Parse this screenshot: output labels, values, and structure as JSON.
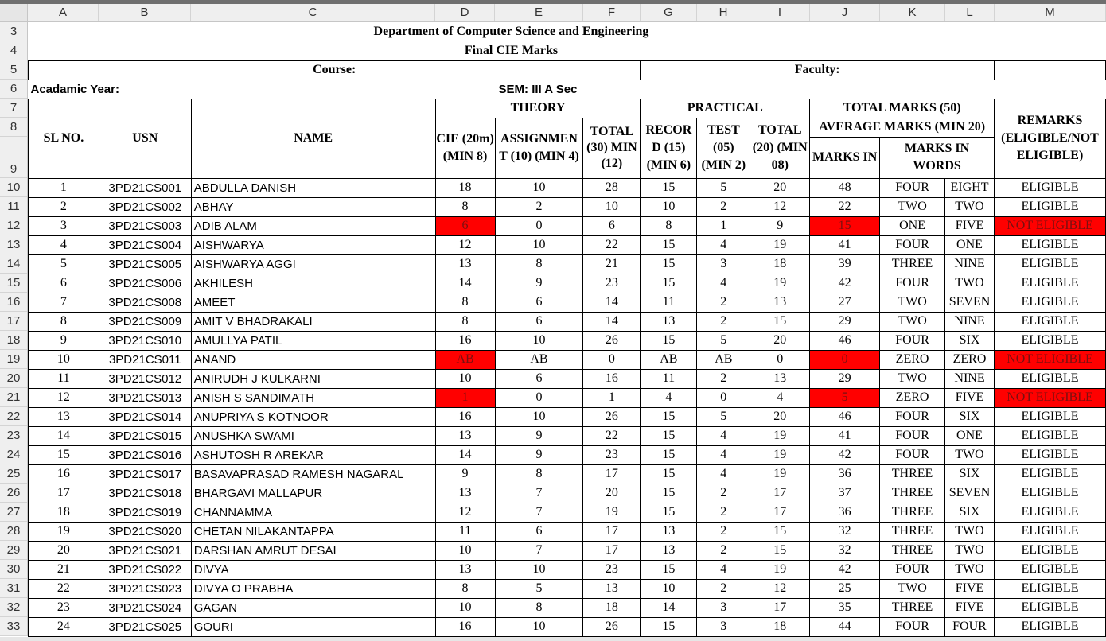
{
  "column_letters": [
    "A",
    "B",
    "C",
    "D",
    "E",
    "F",
    "G",
    "H",
    "I",
    "J",
    "K",
    "L",
    "M"
  ],
  "row_numbers": [
    "3",
    "4",
    "5",
    "6",
    "7",
    "8",
    "9",
    "10",
    "11",
    "12",
    "13",
    "14",
    "15",
    "16",
    "17",
    "18",
    "19",
    "20",
    "21",
    "22",
    "23",
    "24",
    "25",
    "26",
    "27",
    "28",
    "29",
    "30",
    "31",
    "32",
    "33"
  ],
  "header": {
    "dept": "Department of Computer Science and Engineering",
    "final": "Final CIE Marks",
    "course": "Course:",
    "faculty": "Faculty:",
    "academic_year": "Acadamic Year:",
    "sem": "SEM: III  A Sec"
  },
  "columns": {
    "sl_no": "SL NO.",
    "usn": "USN",
    "name": "NAME",
    "theory": "THEORY",
    "practical": "PRACTICAL",
    "total_marks": "TOTAL MARKS (50)",
    "average_marks": "AVERAGE MARKS (MIN 20)",
    "remarks": "REMARKS (ELIGIBLE/NOT ELIGIBLE)",
    "cie": "CIE (20m) (MIN 8)",
    "assignment": "ASSIGNMEN T (10) (MIN 4)",
    "theory_total": "TOTAL (30) MIN (12)",
    "record": "RECOR D (15) (MIN 6)",
    "test": "TEST (05) (MIN 2)",
    "practical_total": "TOTAL (20) (MIN 08)",
    "marks_in": "MARKS IN",
    "marks_in_words": "MARKS IN WORDS"
  },
  "students": [
    {
      "sl": "1",
      "usn": "3PD21CS001",
      "name": "ABDULLA DANISH",
      "cie": "18",
      "asg": "10",
      "ttot": "28",
      "rec": "15",
      "test": "5",
      "ptot": "20",
      "marks": "48",
      "w1": "FOUR",
      "w2": "EIGHT",
      "remark": "ELIGIBLE"
    },
    {
      "sl": "2",
      "usn": "3PD21CS002",
      "name": "ABHAY",
      "cie": "8",
      "asg": "2",
      "ttot": "10",
      "rec": "10",
      "test": "2",
      "ptot": "12",
      "marks": "22",
      "w1": "TWO",
      "w2": "TWO",
      "remark": "ELIGIBLE"
    },
    {
      "sl": "3",
      "usn": "3PD21CS003",
      "name": "ADIB ALAM",
      "cie": "6",
      "asg": "0",
      "ttot": "6",
      "rec": "8",
      "test": "1",
      "ptot": "9",
      "marks": "15",
      "w1": "ONE",
      "w2": "FIVE",
      "remark": "NOT ELIGIBLE",
      "flag": true
    },
    {
      "sl": "4",
      "usn": "3PD21CS004",
      "name": "AISHWARYA",
      "cie": "12",
      "asg": "10",
      "ttot": "22",
      "rec": "15",
      "test": "4",
      "ptot": "19",
      "marks": "41",
      "w1": "FOUR",
      "w2": "ONE",
      "remark": "ELIGIBLE"
    },
    {
      "sl": "5",
      "usn": "3PD21CS005",
      "name": "AISHWARYA AGGI",
      "cie": "13",
      "asg": "8",
      "ttot": "21",
      "rec": "15",
      "test": "3",
      "ptot": "18",
      "marks": "39",
      "w1": "THREE",
      "w2": "NINE",
      "remark": "ELIGIBLE"
    },
    {
      "sl": "6",
      "usn": "3PD21CS006",
      "name": "AKHILESH",
      "cie": "14",
      "asg": "9",
      "ttot": "23",
      "rec": "15",
      "test": "4",
      "ptot": "19",
      "marks": "42",
      "w1": "FOUR",
      "w2": "TWO",
      "remark": "ELIGIBLE"
    },
    {
      "sl": "7",
      "usn": "3PD21CS008",
      "name": "AMEET",
      "cie": "8",
      "asg": "6",
      "ttot": "14",
      "rec": "11",
      "test": "2",
      "ptot": "13",
      "marks": "27",
      "w1": "TWO",
      "w2": "SEVEN",
      "remark": "ELIGIBLE"
    },
    {
      "sl": "8",
      "usn": "3PD21CS009",
      "name": "AMIT V BHADRAKALI",
      "cie": "8",
      "asg": "6",
      "ttot": "14",
      "rec": "13",
      "test": "2",
      "ptot": "15",
      "marks": "29",
      "w1": "TWO",
      "w2": "NINE",
      "remark": "ELIGIBLE"
    },
    {
      "sl": "9",
      "usn": "3PD21CS010",
      "name": "AMULLYA PATIL",
      "cie": "16",
      "asg": "10",
      "ttot": "26",
      "rec": "15",
      "test": "5",
      "ptot": "20",
      "marks": "46",
      "w1": "FOUR",
      "w2": "SIX",
      "remark": "ELIGIBLE"
    },
    {
      "sl": "10",
      "usn": "3PD21CS011",
      "name": "ANAND",
      "cie": "AB",
      "asg": "AB",
      "ttot": "0",
      "rec": "AB",
      "test": "AB",
      "ptot": "0",
      "marks": "0",
      "w1": "ZERO",
      "w2": "ZERO",
      "remark": "NOT ELIGIBLE",
      "flag": true
    },
    {
      "sl": "11",
      "usn": "3PD21CS012",
      "name": "ANIRUDH J KULKARNI",
      "cie": "10",
      "asg": "6",
      "ttot": "16",
      "rec": "11",
      "test": "2",
      "ptot": "13",
      "marks": "29",
      "w1": "TWO",
      "w2": "NINE",
      "remark": "ELIGIBLE"
    },
    {
      "sl": "12",
      "usn": "3PD21CS013",
      "name": "ANISH S SANDIMATH",
      "cie": "1",
      "asg": "0",
      "ttot": "1",
      "rec": "4",
      "test": "0",
      "ptot": "4",
      "marks": "5",
      "w1": "ZERO",
      "w2": "FIVE",
      "remark": "NOT ELIGIBLE",
      "flag": true
    },
    {
      "sl": "13",
      "usn": "3PD21CS014",
      "name": "ANUPRIYA S KOTNOOR",
      "cie": "16",
      "asg": "10",
      "ttot": "26",
      "rec": "15",
      "test": "5",
      "ptot": "20",
      "marks": "46",
      "w1": "FOUR",
      "w2": "SIX",
      "remark": "ELIGIBLE"
    },
    {
      "sl": "14",
      "usn": "3PD21CS015",
      "name": "ANUSHKA SWAMI",
      "cie": "13",
      "asg": "9",
      "ttot": "22",
      "rec": "15",
      "test": "4",
      "ptot": "19",
      "marks": "41",
      "w1": "FOUR",
      "w2": "ONE",
      "remark": "ELIGIBLE"
    },
    {
      "sl": "15",
      "usn": "3PD21CS016",
      "name": "ASHUTOSH R AREKAR",
      "cie": "14",
      "asg": "9",
      "ttot": "23",
      "rec": "15",
      "test": "4",
      "ptot": "19",
      "marks": "42",
      "w1": "FOUR",
      "w2": "TWO",
      "remark": "ELIGIBLE"
    },
    {
      "sl": "16",
      "usn": "3PD21CS017",
      "name": "BASAVAPRASAD RAMESH NAGARAL",
      "cie": "9",
      "asg": "8",
      "ttot": "17",
      "rec": "15",
      "test": "4",
      "ptot": "19",
      "marks": "36",
      "w1": "THREE",
      "w2": "SIX",
      "remark": "ELIGIBLE"
    },
    {
      "sl": "17",
      "usn": "3PD21CS018",
      "name": "BHARGAVI MALLAPUR",
      "cie": "13",
      "asg": "7",
      "ttot": "20",
      "rec": "15",
      "test": "2",
      "ptot": "17",
      "marks": "37",
      "w1": "THREE",
      "w2": "SEVEN",
      "remark": "ELIGIBLE"
    },
    {
      "sl": "18",
      "usn": "3PD21CS019",
      "name": "CHANNAMMA",
      "cie": "12",
      "asg": "7",
      "ttot": "19",
      "rec": "15",
      "test": "2",
      "ptot": "17",
      "marks": "36",
      "w1": "THREE",
      "w2": "SIX",
      "remark": "ELIGIBLE"
    },
    {
      "sl": "19",
      "usn": "3PD21CS020",
      "name": "CHETAN NILAKANTAPPA",
      "cie": "11",
      "asg": "6",
      "ttot": "17",
      "rec": "13",
      "test": "2",
      "ptot": "15",
      "marks": "32",
      "w1": "THREE",
      "w2": "TWO",
      "remark": "ELIGIBLE"
    },
    {
      "sl": "20",
      "usn": "3PD21CS021",
      "name": "DARSHAN AMRUT DESAI",
      "cie": "10",
      "asg": "7",
      "ttot": "17",
      "rec": "13",
      "test": "2",
      "ptot": "15",
      "marks": "32",
      "w1": "THREE",
      "w2": "TWO",
      "remark": "ELIGIBLE"
    },
    {
      "sl": "21",
      "usn": "3PD21CS022",
      "name": "DIVYA",
      "cie": "13",
      "asg": "10",
      "ttot": "23",
      "rec": "15",
      "test": "4",
      "ptot": "19",
      "marks": "42",
      "w1": "FOUR",
      "w2": "TWO",
      "remark": "ELIGIBLE"
    },
    {
      "sl": "22",
      "usn": "3PD21CS023",
      "name": "DIVYA O PRABHA",
      "cie": "8",
      "asg": "5",
      "ttot": "13",
      "rec": "10",
      "test": "2",
      "ptot": "12",
      "marks": "25",
      "w1": "TWO",
      "w2": "FIVE",
      "remark": "ELIGIBLE"
    },
    {
      "sl": "23",
      "usn": "3PD21CS024",
      "name": "GAGAN",
      "cie": "10",
      "asg": "8",
      "ttot": "18",
      "rec": "14",
      "test": "3",
      "ptot": "17",
      "marks": "35",
      "w1": "THREE",
      "w2": "FIVE",
      "remark": "ELIGIBLE"
    },
    {
      "sl": "24",
      "usn": "3PD21CS025",
      "name": "GOURI",
      "cie": "16",
      "asg": "10",
      "ttot": "26",
      "rec": "15",
      "test": "3",
      "ptot": "18",
      "marks": "44",
      "w1": "FOUR",
      "w2": "FOUR",
      "remark": "ELIGIBLE"
    }
  ],
  "colors": {
    "flag_red": "#ff0000"
  }
}
